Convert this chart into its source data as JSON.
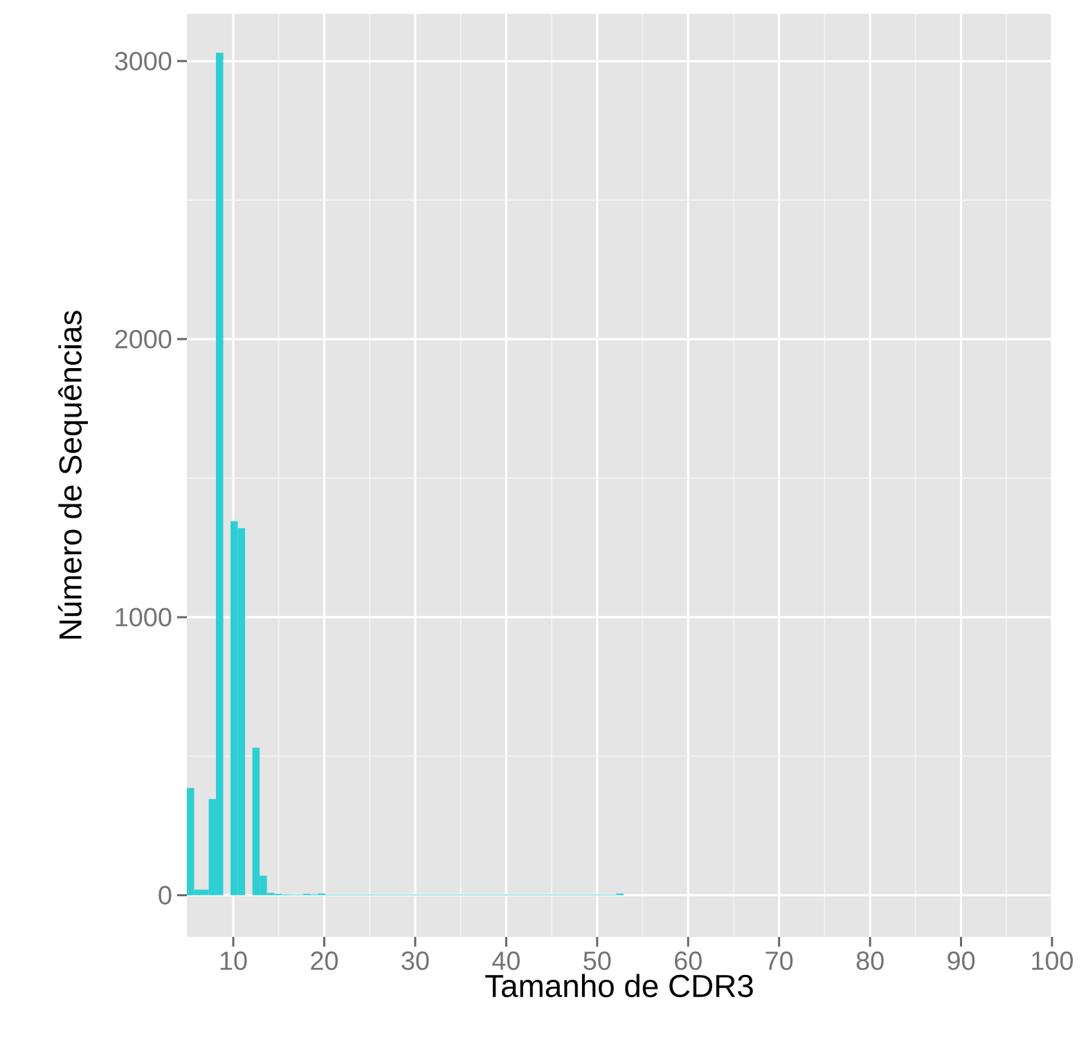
{
  "chart_data": {
    "type": "histogram",
    "xlabel": "Tamanho de CDR3",
    "ylabel": "Número de Sequências",
    "color": "#2ecfd2",
    "bins": [
      4.9,
      5.7,
      6.5,
      7.3,
      8.1,
      8.9,
      9.7,
      10.5,
      11.3,
      12.1,
      12.9,
      13.7,
      14.5,
      15.3,
      16.1,
      16.9,
      17.7,
      18.5,
      19.3,
      20.1,
      20.9,
      21.7,
      22.5,
      23.3,
      24.1,
      24.9,
      25.7,
      26.5,
      27.3,
      28.1,
      28.9,
      29.7,
      30.5,
      31.3,
      32.1,
      32.9,
      33.7,
      34.5,
      35.3,
      36.1,
      36.9,
      37.7,
      38.5,
      39.3,
      40.1,
      40.9,
      41.7,
      42.5,
      43.3,
      44.1,
      44.9,
      45.7,
      46.5,
      47.3,
      48.1,
      48.9,
      49.7,
      50.5,
      51.3,
      52.1,
      52.9
    ],
    "values": [
      386,
      20,
      20,
      346,
      3030,
      0,
      1345,
      1320,
      0,
      530,
      70,
      8,
      5,
      3,
      2,
      2,
      5,
      3,
      6,
      2,
      2,
      2,
      2,
      2,
      2,
      2,
      2,
      2,
      2,
      2,
      2,
      2,
      2,
      2,
      2,
      2,
      2,
      2,
      2,
      2,
      2,
      2,
      2,
      2,
      2,
      2,
      2,
      2,
      2,
      2,
      2,
      2,
      2,
      2,
      2,
      2,
      2,
      2,
      2,
      6
    ],
    "xlim": [
      4.9,
      100
    ],
    "ylim": [
      -150,
      3170
    ],
    "xticks": [
      10,
      20,
      30,
      40,
      50,
      60,
      70,
      80,
      90,
      100
    ],
    "yticks": [
      0,
      1000,
      2000,
      3000
    ],
    "grid": true
  }
}
